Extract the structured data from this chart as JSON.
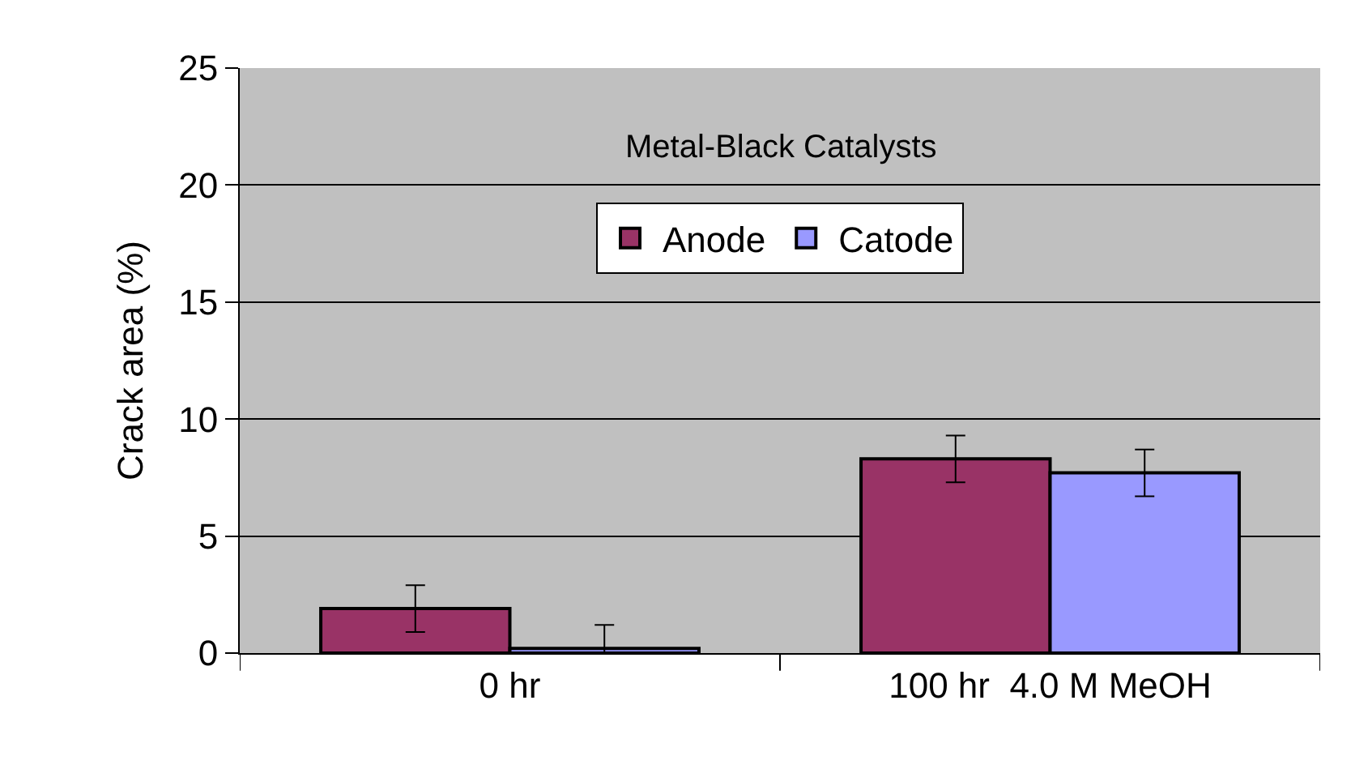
{
  "chart_data": {
    "type": "bar",
    "ylabel": "Crack area (%)",
    "annotations": [
      "Metal-Black Catalysts"
    ],
    "categories": [
      "0 hr",
      "100 hr  4.0 M MeOH"
    ],
    "series": [
      {
        "name": "Anode",
        "color": "#993366",
        "values": [
          1.9,
          8.3
        ],
        "errors": [
          1.0,
          1.0
        ]
      },
      {
        "name": "Catode",
        "color": "#9999ff",
        "values": [
          0.2,
          7.7
        ],
        "errors": [
          1.0,
          1.0
        ]
      }
    ],
    "ylim": [
      0,
      25
    ],
    "yticks": [
      0,
      5,
      10,
      15,
      20,
      25
    ],
    "grid": "y",
    "legend": "top"
  }
}
